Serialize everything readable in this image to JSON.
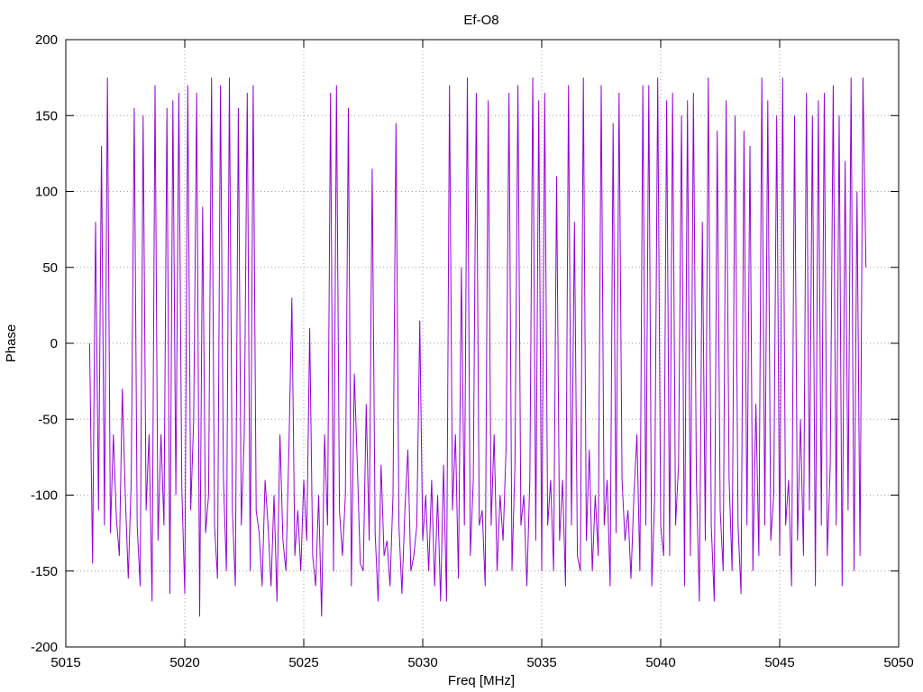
{
  "chart_data": {
    "type": "line",
    "title": "Ef-O8",
    "xlabel": "Freq [MHz]",
    "ylabel": "Phase",
    "xlim": [
      5015,
      5050
    ],
    "ylim": [
      -200,
      200
    ],
    "xticks": [
      5015,
      5020,
      5025,
      5030,
      5035,
      5040,
      5045,
      5050
    ],
    "yticks": [
      -200,
      -150,
      -100,
      -50,
      0,
      50,
      100,
      150,
      200
    ],
    "grid": true,
    "series": [
      {
        "color": "#9400d3",
        "x_start": 5016.0,
        "x_step": 0.125,
        "values": [
          0,
          -145,
          80,
          -110,
          130,
          -120,
          175,
          -125,
          -60,
          -115,
          -140,
          -30,
          -100,
          -155,
          -90,
          155,
          -120,
          -160,
          150,
          -110,
          -60,
          -170,
          170,
          -130,
          -60,
          -120,
          155,
          -165,
          160,
          -100,
          165,
          -95,
          -165,
          170,
          -110,
          -50,
          165,
          -180,
          90,
          -125,
          -100,
          175,
          -120,
          -155,
          170,
          -90,
          -150,
          175,
          -110,
          -160,
          155,
          -120,
          -60,
          165,
          -150,
          170,
          -110,
          -125,
          -160,
          -90,
          -120,
          -160,
          -100,
          -170,
          -60,
          -130,
          -150,
          -70,
          30,
          -140,
          -110,
          -150,
          -90,
          -130,
          10,
          -140,
          -160,
          -100,
          -180,
          -60,
          -120,
          165,
          -150,
          170,
          -110,
          -140,
          -100,
          155,
          -160,
          -20,
          -80,
          -145,
          -150,
          -40,
          -130,
          115,
          -125,
          -170,
          -80,
          -140,
          -130,
          -160,
          -100,
          145,
          -120,
          -165,
          -110,
          -70,
          -150,
          -140,
          -120,
          15,
          -130,
          -100,
          -150,
          -90,
          -160,
          -100,
          -170,
          -80,
          -170,
          170,
          -110,
          -60,
          -155,
          50,
          -120,
          175,
          -140,
          -90,
          165,
          -120,
          -110,
          -160,
          160,
          -120,
          -60,
          -150,
          -100,
          -130,
          -70,
          165,
          -150,
          -80,
          170,
          -120,
          -100,
          -160,
          -90,
          175,
          -130,
          160,
          -150,
          165,
          -120,
          -90,
          -150,
          110,
          -130,
          -90,
          -160,
          170,
          -120,
          80,
          -140,
          -150,
          175,
          -130,
          -70,
          -150,
          -100,
          -140,
          170,
          -120,
          -90,
          -160,
          145,
          -125,
          165,
          -90,
          -130,
          -110,
          -155,
          -100,
          -60,
          -150,
          170,
          -120,
          170,
          -160,
          -100,
          175,
          -120,
          -140,
          160,
          -140,
          165,
          -120,
          -80,
          150,
          -160,
          160,
          -140,
          165,
          -90,
          -170,
          80,
          -130,
          175,
          -120,
          -170,
          140,
          -110,
          -150,
          160,
          -90,
          -150,
          150,
          -120,
          -165,
          140,
          -120,
          130,
          -150,
          -40,
          -140,
          175,
          -120,
          160,
          -130,
          -100,
          150,
          -140,
          175,
          -120,
          -90,
          -160,
          150,
          -130,
          -50,
          -140,
          165,
          -110,
          150,
          -160,
          160,
          -120,
          165,
          -140,
          -80,
          170,
          -120,
          150,
          -160,
          120,
          -110,
          175,
          -150,
          100,
          -140,
          175,
          50
        ]
      }
    ]
  }
}
